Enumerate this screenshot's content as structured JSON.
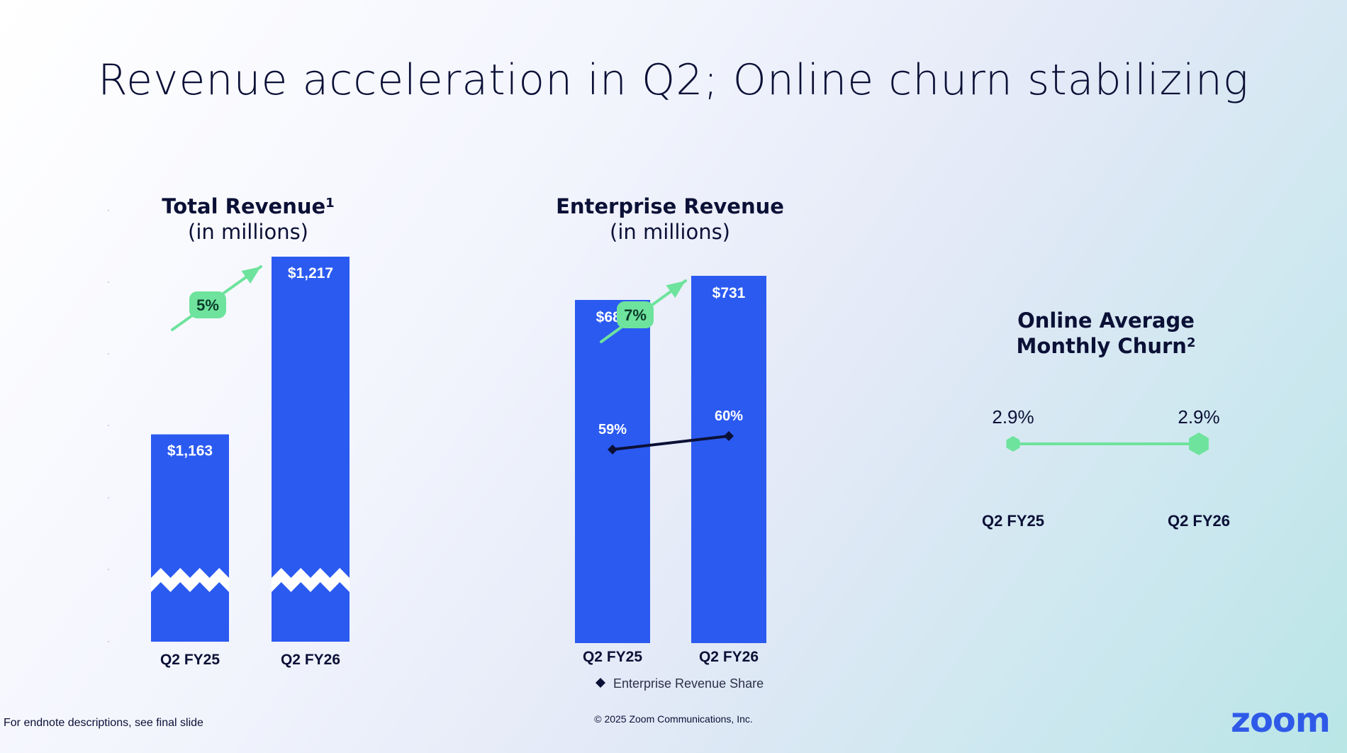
{
  "slide": {
    "title": "Revenue acceleration in Q2; Online churn stabilizing",
    "footnote": "For endnote descriptions, see final slide",
    "copyright": "© 2025 Zoom Communications, Inc.",
    "logo_text": "zoom"
  },
  "colors": {
    "bar": "#2b5af1",
    "growth": "#6ee39d",
    "growth_text": "#0b3b2a",
    "share_line": "#0b1036",
    "churn_line": "#6ee39d",
    "bar_text": "#ffffff",
    "logo": "#2f5ae8"
  },
  "chart_data": [
    {
      "type": "bar",
      "title": "Total Revenue",
      "title_superscript": "1",
      "subtitle": "(in millions)",
      "categories": [
        "Q2 FY25",
        "Q2 FY26"
      ],
      "values": [
        1163,
        1217
      ],
      "value_labels": [
        "$1,163",
        "$1,217"
      ],
      "growth_label": "5%",
      "axis_break": true
    },
    {
      "type": "bar",
      "title": "Enterprise Revenue",
      "subtitle": "(in millions)",
      "categories": [
        "Q2 FY25",
        "Q2 FY26"
      ],
      "values": [
        683,
        731
      ],
      "value_labels": [
        "$683",
        "$731"
      ],
      "growth_label": "7%",
      "share_series": {
        "name": "Enterprise Revenue Share",
        "values": [
          59,
          60
        ],
        "labels": [
          "59%",
          "60%"
        ]
      },
      "legend": "Enterprise Revenue Share"
    },
    {
      "type": "line",
      "title": "Online Average Monthly Churn",
      "title_superscript": "2",
      "categories": [
        "Q2 FY25",
        "Q2 FY26"
      ],
      "values": [
        2.9,
        2.9
      ],
      "value_labels": [
        "2.9%",
        "2.9%"
      ]
    }
  ]
}
